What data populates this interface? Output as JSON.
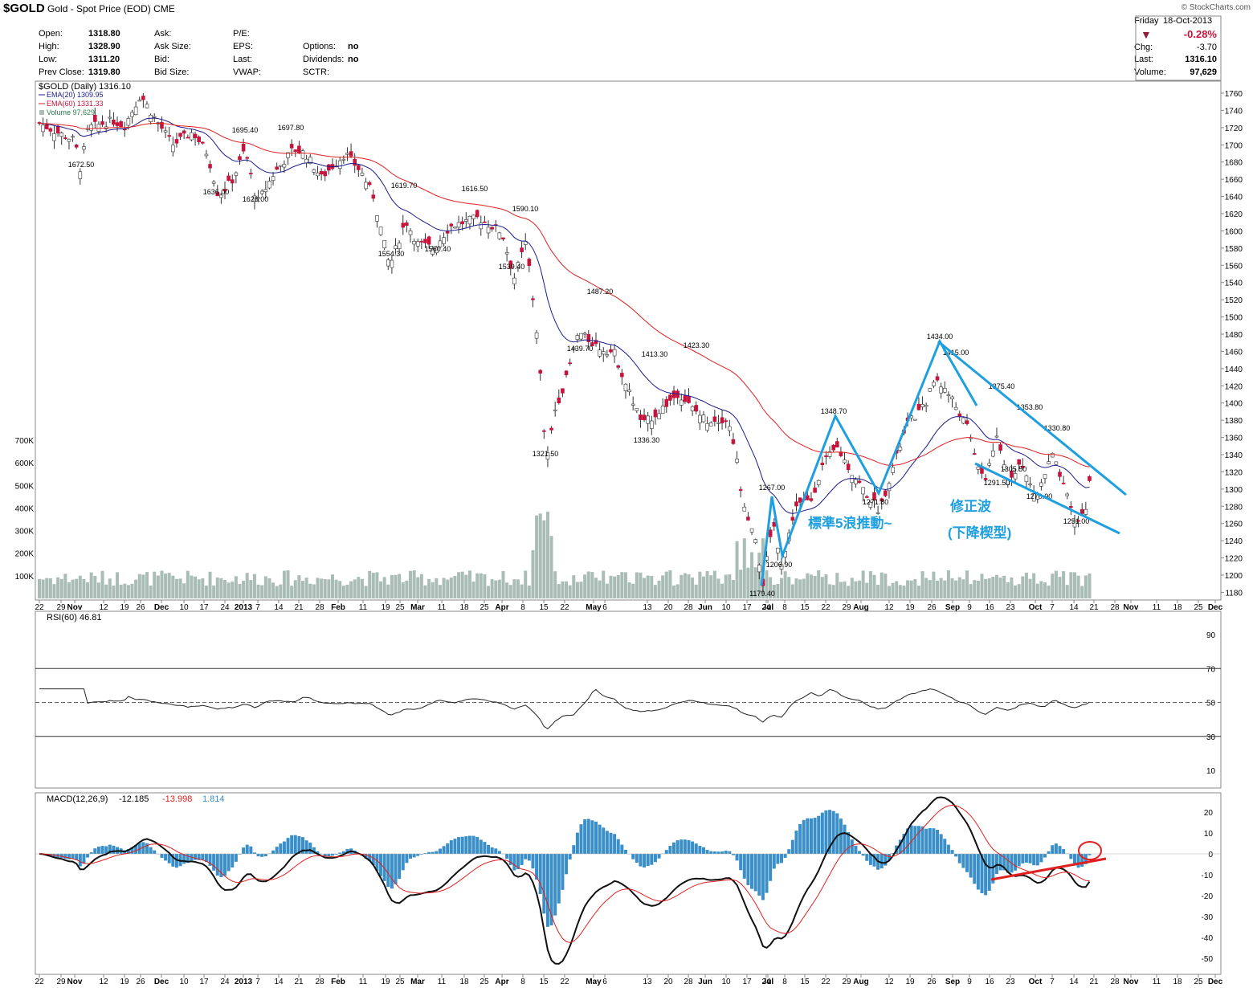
{
  "header": {
    "symbol": "$GOLD",
    "description": "Gold - Spot Price (EOD)",
    "exchange": "CME",
    "copyright": "© StockCharts.com",
    "day": "Friday",
    "date": "18-Oct-2013",
    "pct_change": "-0.28%",
    "down_color": "#8b1f3a"
  },
  "quote_left": [
    {
      "label": "Open:",
      "value": "1318.80"
    },
    {
      "label": "High:",
      "value": "1328.90"
    },
    {
      "label": "Low:",
      "value": "1311.20"
    },
    {
      "label": "Prev Close:",
      "value": "1319.80"
    }
  ],
  "quote_mid": [
    "Ask:",
    "Ask Size:",
    "Bid:",
    "Bid Size:"
  ],
  "quote_mid2": [
    "P/E:",
    "EPS:",
    "Last:",
    "VWAP:"
  ],
  "quote_mid3": [
    {
      "label": "Options:",
      "value": "no"
    },
    {
      "label": "Dividends:",
      "value": "no"
    },
    {
      "label": "SCTR:",
      "value": ""
    }
  ],
  "quote_right": [
    {
      "label": "Chg:",
      "value": "-3.70"
    },
    {
      "label": "Last:",
      "value": "1316.10"
    },
    {
      "label": "Volume:",
      "value": "97,629"
    }
  ],
  "price_panel": {
    "legend_main": "$GOLD (Daily) 1316.10",
    "legend_ema20": "EMA(20) 1309.95",
    "legend_ema60": "EMA(60) 1331.33",
    "legend_volume": "Volume 97,629",
    "ema20_color": "#1c1c8c",
    "ema60_color": "#e02020",
    "up_color": "#ffffff",
    "down_color": "#c8143c",
    "volume_color": "#a9bdb6",
    "wedge_color": "#1e9fe0",
    "wedge_label_color": "#1e9fe0",
    "annotation_impulse": "標準5浪推動~",
    "annotation_correction": "修正波",
    "annotation_wedge": "(下降楔型)",
    "price_ticks": [
      1180,
      1200,
      1220,
      1240,
      1260,
      1280,
      1300,
      1320,
      1340,
      1360,
      1380,
      1400,
      1420,
      1440,
      1460,
      1480,
      1500,
      1520,
      1540,
      1560,
      1580,
      1600,
      1620,
      1640,
      1660,
      1680,
      1700,
      1720,
      1740,
      1760
    ],
    "volume_ticks": [
      "100K",
      "200K",
      "300K",
      "400K",
      "500K",
      "600K",
      "700K"
    ],
    "price_labels": [
      "1672.50",
      "1636.00",
      "1695.40",
      "1626.00",
      "1697.80",
      "1619.70",
      "1554.30",
      "1560.40",
      "1616.50",
      "1590.10",
      "1539.40",
      "1321.50",
      "1487.20",
      "1439.70",
      "1413.30",
      "1336.30",
      "1423.30",
      "1267.00",
      "1179.40",
      "1206.90",
      "1348.70",
      "1271.80",
      "1434.00",
      "1415.00",
      "1375.40",
      "1291.50",
      "1305.50",
      "1353.80",
      "1330.80",
      "1270.90",
      "1251.00"
    ]
  },
  "x_axis": [
    "22",
    "29",
    "Nov",
    "12",
    "19",
    "26",
    "Dec",
    "10",
    "17",
    "24",
    "2013",
    "7",
    "14",
    "21",
    "28",
    "Feb",
    "11",
    "19",
    "25",
    "Mar",
    "11",
    "18",
    "25",
    "Apr",
    "8",
    "15",
    "22",
    "May",
    "6",
    "13",
    "20",
    "28",
    "Jun",
    "10",
    "17",
    "24",
    "Jul",
    "8",
    "15",
    "22",
    "29",
    "Aug",
    "12",
    "19",
    "26",
    "Sep",
    "9",
    "16",
    "23",
    "Oct",
    "7",
    "14",
    "21",
    "28",
    "Nov",
    "11",
    "18",
    "25",
    "Dec"
  ],
  "rsi_panel": {
    "legend": "RSI(60) 46.81",
    "ticks": [
      10,
      30,
      50,
      70,
      90
    ]
  },
  "macd_panel": {
    "legend_prefix": "MACD(12,26,9)",
    "macd_value": "-12.185",
    "signal_value": "-13.998",
    "hist_value": "1.814",
    "signal_color": "#e02020",
    "hist_color": "#3a8fc8",
    "divergence_color": "#e02020",
    "ticks": [
      -50,
      -40,
      -30,
      -20,
      -10,
      0,
      10,
      20
    ]
  },
  "chart_data": {
    "type": "candlestick",
    "title": "$GOLD Gold - Spot Price (EOD) CME",
    "period": "Daily",
    "x_range": [
      "2012-10-22",
      "2013-12-02"
    ],
    "price_ylim": [
      1165,
      1770
    ],
    "key_points": [
      {
        "date": "2012-11-06",
        "price": 1672.5,
        "label": "1672.50"
      },
      {
        "date": "2012-12-27",
        "price": 1636.0,
        "label": "1636.00"
      },
      {
        "date": "2013-01-03",
        "price": 1695.4,
        "label": "1695.40"
      },
      {
        "date": "2013-01-04",
        "price": 1626.0,
        "label": "1626.00"
      },
      {
        "date": "2013-01-18",
        "price": 1697.8,
        "label": "1697.80"
      },
      {
        "date": "2013-02-20",
        "price": 1619.7,
        "label": "1619.70"
      },
      {
        "date": "2013-02-20",
        "price": 1554.3,
        "label": "1554.30"
      },
      {
        "date": "2013-03-06",
        "price": 1560.4,
        "label": "1560.40"
      },
      {
        "date": "2013-03-25",
        "price": 1616.5,
        "label": "1616.50"
      },
      {
        "date": "2013-04-03",
        "price": 1590.1,
        "label": "1590.10"
      },
      {
        "date": "2013-04-04",
        "price": 1539.4,
        "label": "1539.40"
      },
      {
        "date": "2013-04-16",
        "price": 1321.5,
        "label": "1321.50"
      },
      {
        "date": "2013-05-03",
        "price": 1487.2,
        "label": "1487.20"
      },
      {
        "date": "2013-04-29",
        "price": 1439.7,
        "label": "1439.70"
      },
      {
        "date": "2013-05-21",
        "price": 1413.3,
        "label": "1413.30"
      },
      {
        "date": "2013-05-20",
        "price": 1336.3,
        "label": "1336.30"
      },
      {
        "date": "2013-06-06",
        "price": 1423.3,
        "label": "1423.30"
      },
      {
        "date": "2013-07-02",
        "price": 1267.0,
        "label": "1267.00"
      },
      {
        "date": "2013-06-28",
        "price": 1179.4,
        "label": "1179.40"
      },
      {
        "date": "2013-07-05",
        "price": 1206.9,
        "label": "1206.90"
      },
      {
        "date": "2013-07-24",
        "price": 1348.7,
        "label": "1348.70"
      },
      {
        "date": "2013-08-07",
        "price": 1271.8,
        "label": "1271.80"
      },
      {
        "date": "2013-08-28",
        "price": 1434.0,
        "label": "1434.00"
      },
      {
        "date": "2013-09-03",
        "price": 1415.0,
        "label": "1415.00"
      },
      {
        "date": "2013-09-19",
        "price": 1375.4,
        "label": "1375.40"
      },
      {
        "date": "2013-09-18",
        "price": 1291.5,
        "label": "1291.50"
      },
      {
        "date": "2013-09-26",
        "price": 1305.5,
        "label": "1305.50"
      },
      {
        "date": "2013-10-01",
        "price": 1353.8,
        "label": "1353.80"
      },
      {
        "date": "2013-10-08",
        "price": 1330.8,
        "label": "1330.80"
      },
      {
        "date": "2013-10-01",
        "price": 1270.9,
        "label": "1270.90"
      },
      {
        "date": "2013-10-15",
        "price": 1251.0,
        "label": "1251.00"
      }
    ],
    "last": {
      "date": "2013-10-18",
      "open": 1318.8,
      "high": 1328.9,
      "low": 1311.2,
      "close": 1316.1,
      "volume": 97629
    },
    "ema20_last": 1309.95,
    "ema60_last": 1331.33,
    "rsi60_last": 46.81,
    "macd_last": {
      "macd": -12.185,
      "signal": -13.998,
      "histogram": 1.814
    },
    "volume_ylim": [
      0,
      800000
    ],
    "rsi_ylim": [
      0,
      100
    ],
    "macd_ylim": [
      -55,
      28
    ]
  }
}
